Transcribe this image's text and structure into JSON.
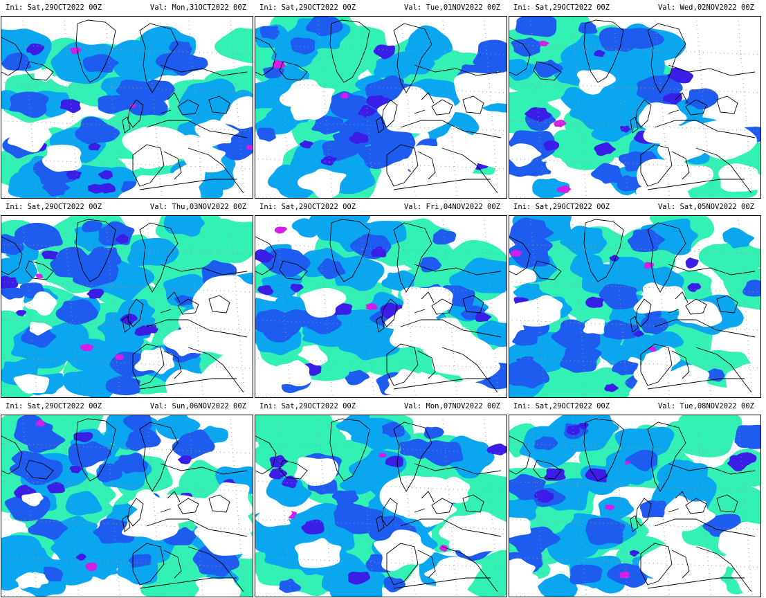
{
  "panels": [
    {
      "ini_label": "Ini:",
      "ini_value": "Sat,29OCT2022  00Z",
      "val_label": "Val:",
      "val_value": "Mon,31OCT2022  00Z",
      "seed": 1
    },
    {
      "ini_label": "Ini:",
      "ini_value": "Sat,29OCT2022  00Z",
      "val_label": "Val:",
      "val_value": "Tue,01NOV2022  00Z",
      "seed": 2
    },
    {
      "ini_label": "Ini:",
      "ini_value": "Sat,29OCT2022  00Z",
      "val_label": "Val:",
      "val_value": "Wed,02NOV2022  00Z",
      "seed": 3
    },
    {
      "ini_label": "Ini:",
      "ini_value": "Sat,29OCT2022  00Z",
      "val_label": "Val:",
      "val_value": "Thu,03NOV2022  00Z",
      "seed": 4
    },
    {
      "ini_label": "Ini:",
      "ini_value": "Sat,29OCT2022  00Z",
      "val_label": "Val:",
      "val_value": "Fri,04NOV2022  00Z",
      "seed": 5
    },
    {
      "ini_label": "Ini:",
      "ini_value": "Sat,29OCT2022  00Z",
      "val_label": "Val:",
      "val_value": "Sat,05NOV2022  00Z",
      "seed": 6
    },
    {
      "ini_label": "Ini:",
      "ini_value": "Sat,29OCT2022  00Z",
      "val_label": "Val:",
      "val_value": "Sun,06NOV2022  00Z",
      "seed": 7
    },
    {
      "ini_label": "Ini:",
      "ini_value": "Sat,29OCT2022  00Z",
      "val_label": "Val:",
      "val_value": "Mon,07NOV2022  00Z",
      "seed": 8
    },
    {
      "ini_label": "Ini:",
      "ini_value": "Sat,29OCT2022  00Z",
      "val_label": "Val:",
      "val_value": "Tue,08NOV2022  00Z",
      "seed": 9
    }
  ],
  "colors": {
    "light": "#33f0b4",
    "medium": "#0aa6f0",
    "strong": "#1e5cf0",
    "heavy": "#3a1ee6",
    "extreme": "#d21ee6",
    "coast": "#000000",
    "grid_dots": "#9a9a9a"
  }
}
